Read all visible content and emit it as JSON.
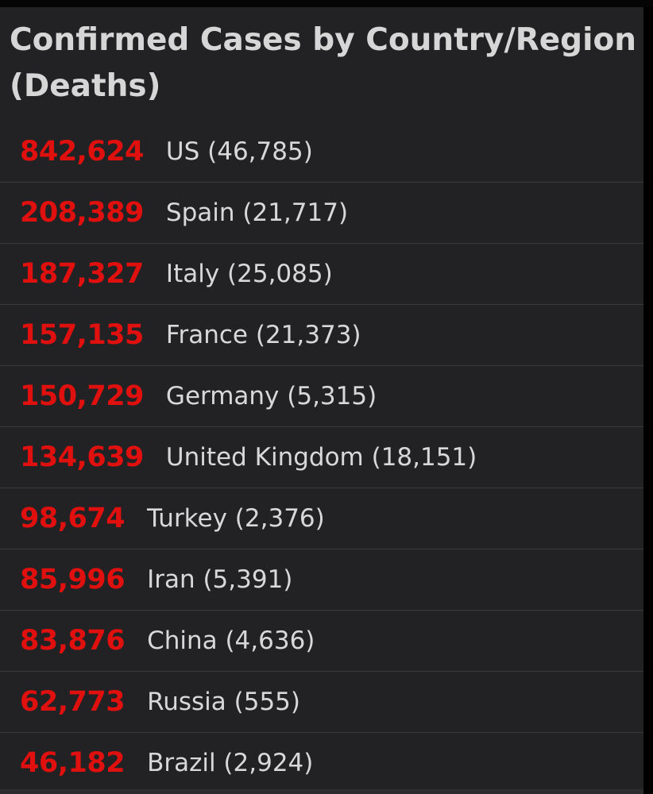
{
  "panel": {
    "title": "Confirmed Cases by Country/Region (Deaths)"
  },
  "colors": {
    "background": "#222225",
    "case_count": "#e0100e",
    "text": "#d8d8d8"
  },
  "rows": [
    {
      "count": "842,624",
      "label": "US (46,785)"
    },
    {
      "count": "208,389",
      "label": "Spain (21,717)"
    },
    {
      "count": "187,327",
      "label": "Italy (25,085)"
    },
    {
      "count": "157,135",
      "label": "France (21,373)"
    },
    {
      "count": "150,729",
      "label": "Germany (5,315)"
    },
    {
      "count": "134,639",
      "label": "United Kingdom (18,151)"
    },
    {
      "count": "98,674",
      "label": "Turkey (2,376)"
    },
    {
      "count": "85,996",
      "label": "Iran (5,391)"
    },
    {
      "count": "83,876",
      "label": "China (4,636)"
    },
    {
      "count": "62,773",
      "label": "Russia (555)"
    },
    {
      "count": "46,182",
      "label": "Brazil (2,924)"
    }
  ]
}
